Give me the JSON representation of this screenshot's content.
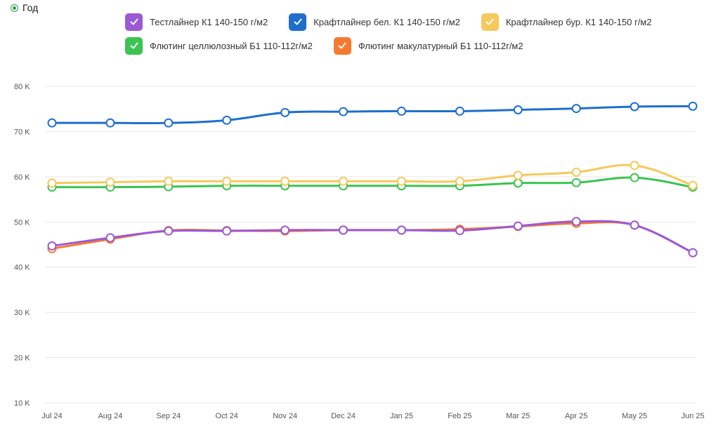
{
  "period": {
    "label": "Год",
    "selected": true
  },
  "chart_data": {
    "type": "line",
    "title": "",
    "xlabel": "",
    "ylabel": "",
    "x": [
      "Jul 24",
      "Aug 24",
      "Sep 24",
      "Oct 24",
      "Nov 24",
      "Dec 24",
      "Jan 25",
      "Feb 25",
      "Mar 25",
      "Apr 25",
      "May 25",
      "Jun 25"
    ],
    "y_ticks": [
      "10 K",
      "20 K",
      "30 K",
      "40 K",
      "50 K",
      "60 K",
      "70 K",
      "80 K"
    ],
    "ylim": [
      10000,
      80000
    ],
    "grid": true,
    "legend_position": "top",
    "series": [
      {
        "name": "Тестлайнер К1 140-150 г/м2",
        "color": "#9b59d6",
        "values": [
          44700,
          46500,
          48000,
          48000,
          48200,
          48200,
          48200,
          48100,
          49100,
          50100,
          49300,
          43200
        ]
      },
      {
        "name": "Крафтлайнер бел. К1 140-150 г/м2",
        "color": "#1e6fcc",
        "values": [
          71900,
          71900,
          71900,
          72500,
          74200,
          74400,
          74500,
          74500,
          74800,
          75100,
          75500,
          75600
        ]
      },
      {
        "name": "Крафтлайнер бур. К1 140-150 г/м2",
        "color": "#f5c95c",
        "values": [
          58600,
          58800,
          59000,
          59000,
          59000,
          59000,
          59000,
          59000,
          60300,
          61000,
          62500,
          58100
        ]
      },
      {
        "name": "Флютинг целлюлозный Б1 110-112г/м2",
        "color": "#3cc352",
        "values": [
          57700,
          57700,
          57800,
          58000,
          58000,
          58000,
          58000,
          58000,
          58600,
          58700,
          59800,
          57700
        ]
      },
      {
        "name": "Флютинг макулатурный Б1 110-112г/м2",
        "color": "#f47a30",
        "values": [
          44100,
          46200,
          48100,
          48100,
          48000,
          48200,
          48200,
          48400,
          49000,
          49700,
          49300,
          43200
        ]
      }
    ]
  }
}
